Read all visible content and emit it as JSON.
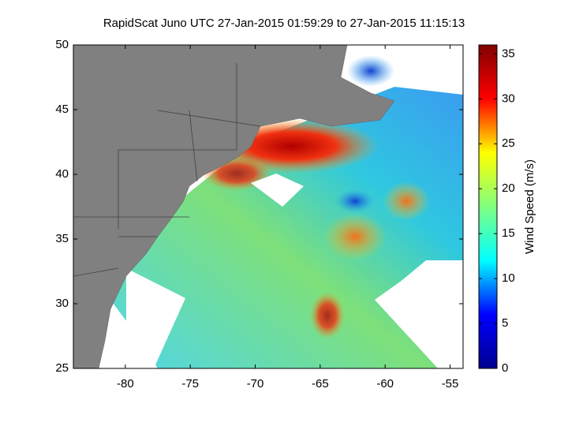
{
  "chart_data": {
    "type": "map",
    "title": "RapidScat Juno UTC 27-Jan-2015 01:59:29 to 27-Jan-2015 11:15:13",
    "xlim": [
      -84,
      -54
    ],
    "xticks": [
      -80,
      -75,
      -70,
      -65,
      -60,
      -55
    ],
    "ylim": [
      25,
      50
    ],
    "yticks": [
      25,
      30,
      35,
      40,
      45,
      50
    ],
    "colorbar": {
      "label": "Wind Speed (m/s)",
      "lim": [
        0,
        36
      ],
      "ticks": [
        0,
        5,
        10,
        15,
        20,
        25,
        30,
        35
      ],
      "colormap": "jet"
    }
  }
}
